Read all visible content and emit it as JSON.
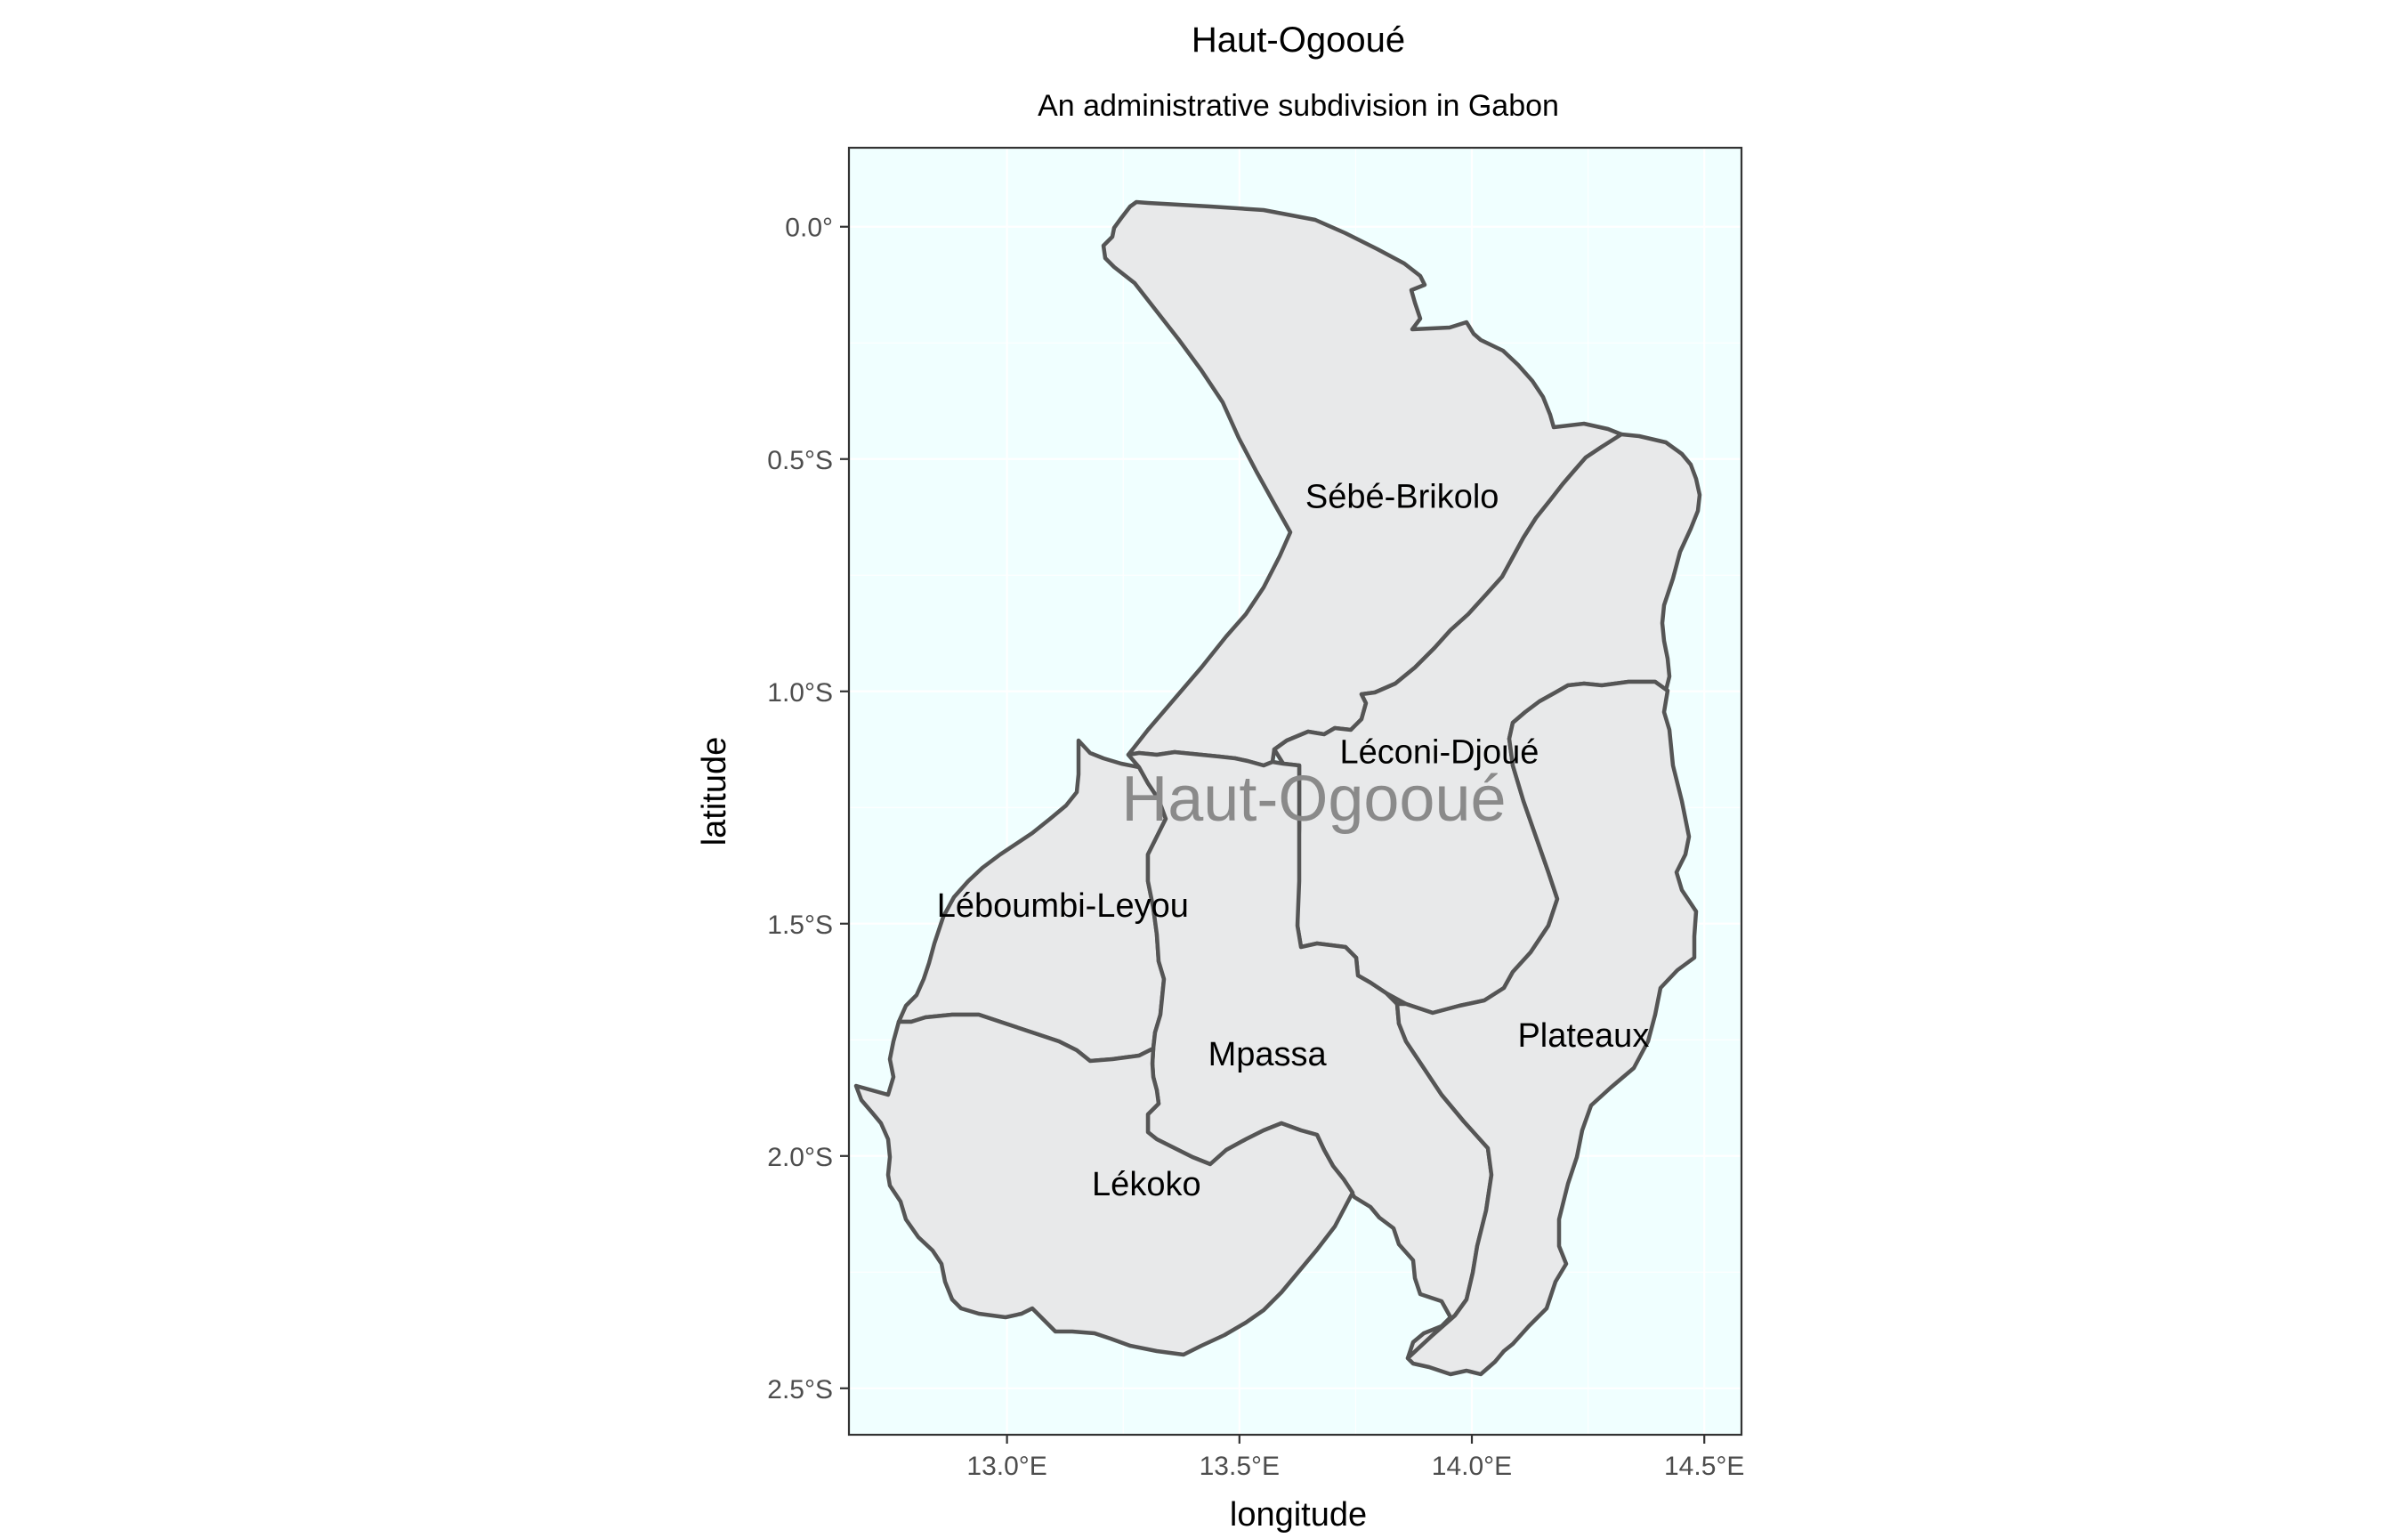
{
  "chart_data": {
    "type": "map",
    "title": "Haut-Ogooué",
    "subtitle": "An administrative subdivision in Gabon",
    "xlabel": "longitude",
    "ylabel": "latitude",
    "xlim": [
      12.66,
      14.58
    ],
    "ylim": [
      -2.6,
      0.17
    ],
    "x_ticks": [
      {
        "value": 13.0,
        "label": "13.0°E"
      },
      {
        "value": 13.5,
        "label": "13.5°E"
      },
      {
        "value": 14.0,
        "label": "14.0°E"
      },
      {
        "value": 14.5,
        "label": "14.5°E"
      }
    ],
    "y_ticks": [
      {
        "value": 0.0,
        "label": "0.0°"
      },
      {
        "value": -0.5,
        "label": "0.5°S"
      },
      {
        "value": -1.0,
        "label": "1.0°S"
      },
      {
        "value": -1.5,
        "label": "1.5°S"
      },
      {
        "value": -2.0,
        "label": "2.0°S"
      },
      {
        "value": -2.5,
        "label": "2.5°S"
      }
    ],
    "province_label": {
      "text": "Haut-Ogooué",
      "lon": 13.66,
      "lat": -1.23
    },
    "background_color": "#f0ffff",
    "fill_color": "#e8e9ea",
    "border_color": "#555555",
    "grid": true,
    "regions": [
      {
        "name": "Sébé-Brikolo",
        "label_lon": 13.85,
        "label_lat": -0.58
      },
      {
        "name": "Léconi-Djoué",
        "label_lon": 13.93,
        "label_lat": -1.13
      },
      {
        "name": "Léboumbi-Leyou",
        "label_lon": 13.12,
        "label_lat": -1.46
      },
      {
        "name": "Mpassa",
        "label_lon": 13.56,
        "label_lat": -1.78
      },
      {
        "name": "Plateaux",
        "label_lon": 14.24,
        "label_lat": -1.74
      },
      {
        "name": "Lékoko",
        "label_lon": 13.3,
        "label_lat": -2.06
      }
    ]
  }
}
